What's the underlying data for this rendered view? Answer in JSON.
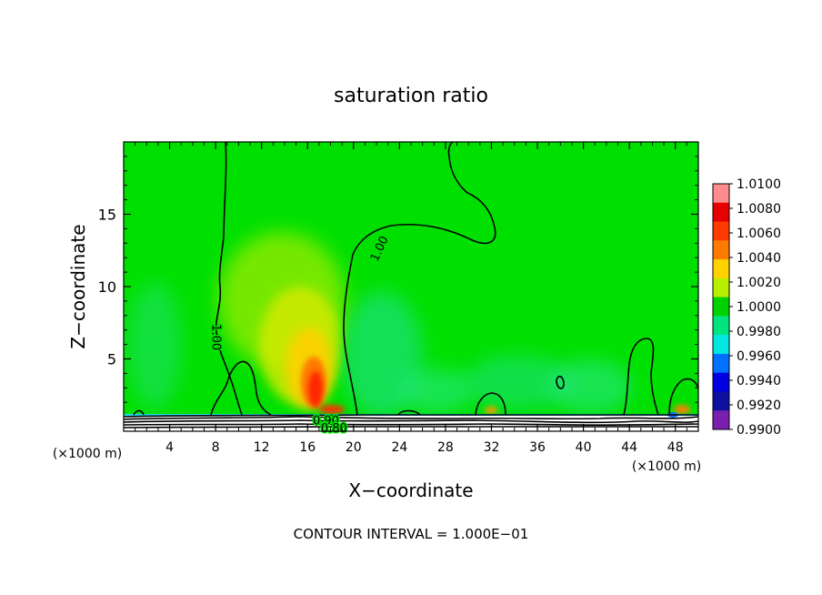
{
  "chart_data": {
    "type": "contour",
    "title": "saturation ratio",
    "xlabel": "X−coordinate",
    "ylabel": "Z−coordinate",
    "x_unit_left": "(×1000 m)",
    "x_unit_right": "(×1000 m)",
    "xlim": [
      0,
      50
    ],
    "ylim": [
      0,
      20
    ],
    "x_ticks": [
      4,
      8,
      12,
      16,
      20,
      24,
      28,
      32,
      36,
      40,
      44,
      48
    ],
    "y_ticks": [
      5,
      10,
      15
    ],
    "footer": "CONTOUR INTERVAL = 1.000E−01",
    "contour_labels": [
      {
        "text": "1.00",
        "x": 8.0,
        "z": 6.5
      },
      {
        "text": "1.00",
        "x": 22.3,
        "z": 12.6
      },
      {
        "text": "0.90",
        "x": 17.6,
        "z": 0.7
      },
      {
        "text": "0.80",
        "x": 18.3,
        "z": 0.15
      }
    ],
    "colorbar": {
      "labels": [
        "1.0100",
        "1.0080",
        "1.0060",
        "1.0040",
        "1.0020",
        "1.0000",
        "0.9980",
        "0.9960",
        "0.9940",
        "0.9920",
        "0.9900"
      ],
      "colors": [
        "#ff8c8c",
        "#e60000",
        "#ff3a00",
        "#ff7a00",
        "#ffd200",
        "#b8ee00",
        "#00d200",
        "#00e480",
        "#00e8e0",
        "#0070ff",
        "#0000e0",
        "#1010a0",
        "#7a1fae"
      ]
    },
    "colors": {
      "background_field": "#00e000",
      "contour_line": "#000000"
    }
  }
}
